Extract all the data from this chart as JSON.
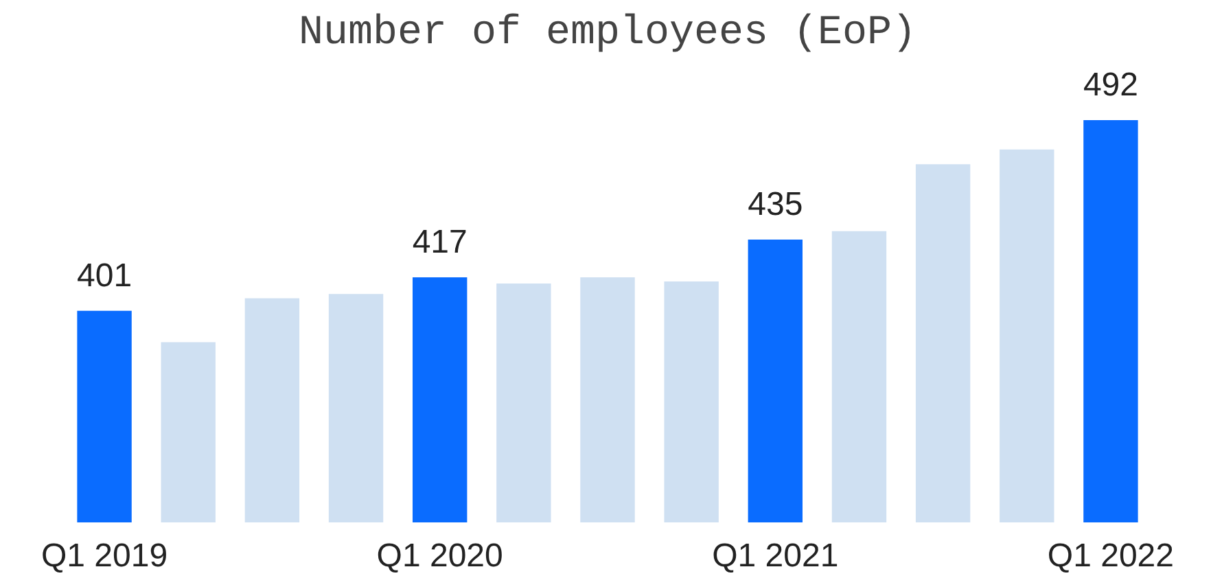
{
  "chart_data": {
    "type": "bar",
    "title": "Number of employees (EoP)",
    "categories": [
      "Q1 2019",
      null,
      null,
      null,
      "Q1 2020",
      null,
      null,
      null,
      "Q1 2021",
      null,
      null,
      null,
      "Q1 2022"
    ],
    "values": [
      401,
      386,
      407,
      409,
      417,
      414,
      417,
      415,
      435,
      439,
      471,
      478,
      492
    ],
    "colors": [
      "#0a6cff",
      "#cfe0f2",
      "#cfe0f2",
      "#cfe0f2",
      "#0a6cff",
      "#cfe0f2",
      "#cfe0f2",
      "#cfe0f2",
      "#0a6cff",
      "#cfe0f2",
      "#cfe0f2",
      "#cfe0f2",
      "#0a6cff"
    ],
    "value_labels": [
      "401",
      null,
      null,
      null,
      "417",
      null,
      null,
      null,
      "435",
      null,
      null,
      null,
      "492"
    ],
    "ylim": [
      300,
      492
    ],
    "grid": false
  }
}
